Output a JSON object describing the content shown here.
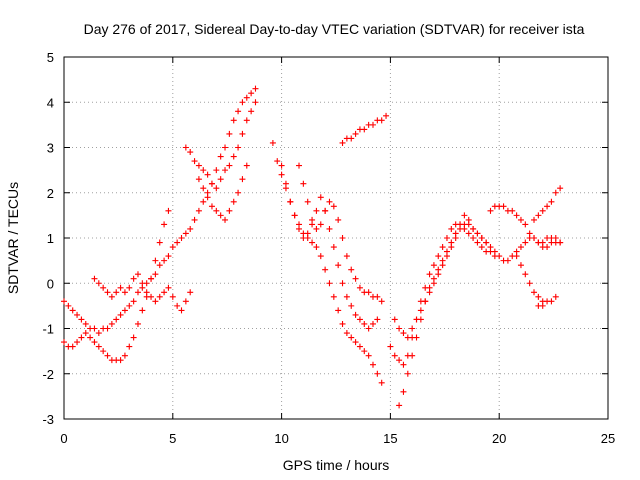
{
  "chart_data": {
    "type": "scatter",
    "title": "Day 276 of 2017, Sidereal Day-to-day VTEC variation (SDTVAR) for receiver ista",
    "xlabel": "GPS time / hours",
    "ylabel": "SDTVAR / TECUs",
    "xlim": [
      0,
      25
    ],
    "ylim": [
      -3,
      5
    ],
    "xticks": [
      "0",
      "5",
      "10",
      "15",
      "20",
      "25"
    ],
    "yticks": [
      "-3",
      "-2",
      "-1",
      "0",
      "1",
      "2",
      "3",
      "4",
      "5"
    ],
    "grid": true,
    "marker": "plus",
    "color": "#ff0000",
    "series": [
      {
        "x": [
          0.0,
          0.2,
          0.4,
          0.6,
          0.8,
          1.0,
          1.2,
          1.4,
          1.6,
          1.8,
          2.0,
          2.2,
          2.4,
          2.6,
          2.8,
          3.0,
          3.2,
          3.4,
          3.6,
          3.8,
          4.0,
          4.2,
          4.4,
          4.6,
          4.8,
          5.0,
          5.2,
          5.4,
          5.6,
          5.8,
          6.0,
          6.2,
          6.4,
          6.6,
          6.8,
          7.0,
          7.2,
          7.4,
          7.6,
          7.8,
          8.0,
          8.2,
          8.4,
          8.6,
          8.8
        ],
        "y": [
          -0.4,
          -0.5,
          -0.6,
          -0.7,
          -0.8,
          -0.9,
          -1.0,
          -1.0,
          -1.1,
          -1.0,
          -1.0,
          -0.9,
          -0.8,
          -0.7,
          -0.6,
          -0.5,
          -0.4,
          -0.2,
          -0.1,
          0.0,
          0.1,
          0.2,
          0.4,
          0.5,
          0.6,
          0.8,
          0.9,
          1.0,
          1.1,
          1.2,
          1.4,
          1.6,
          1.8,
          2.0,
          2.2,
          2.5,
          2.8,
          3.0,
          3.3,
          3.6,
          3.8,
          4.0,
          4.1,
          4.2,
          4.3
        ]
      },
      {
        "x": [
          0.0,
          0.2,
          0.4,
          0.6,
          0.8,
          1.0,
          1.2,
          1.4,
          1.6,
          1.8,
          2.0,
          2.2,
          2.4,
          2.6,
          2.8,
          3.0,
          3.2,
          3.4,
          3.6,
          3.8,
          4.0,
          4.2,
          4.4,
          4.6,
          4.8
        ],
        "y": [
          -1.3,
          -1.4,
          -1.4,
          -1.3,
          -1.2,
          -1.1,
          -1.2,
          -1.3,
          -1.4,
          -1.5,
          -1.6,
          -1.7,
          -1.7,
          -1.7,
          -1.6,
          -1.4,
          -1.2,
          -0.9,
          -0.6,
          -0.3,
          0.1,
          0.5,
          0.9,
          1.3,
          1.6
        ]
      },
      {
        "x": [
          1.4,
          1.6,
          1.8,
          2.0,
          2.2,
          2.4,
          2.6,
          2.8,
          3.0,
          3.2,
          3.4,
          3.6,
          3.8,
          4.0,
          4.2,
          4.4,
          4.6,
          4.8,
          5.0,
          5.2,
          5.4,
          5.6,
          5.8
        ],
        "y": [
          0.1,
          0.0,
          -0.1,
          -0.2,
          -0.3,
          -0.2,
          -0.1,
          -0.2,
          -0.1,
          0.1,
          0.2,
          0.0,
          -0.2,
          -0.3,
          -0.4,
          -0.3,
          -0.2,
          -0.1,
          -0.3,
          -0.5,
          -0.6,
          -0.4,
          -0.2
        ]
      },
      {
        "x": [
          5.6,
          5.8,
          6.0,
          6.2,
          6.4,
          6.6,
          6.8,
          7.0,
          7.2,
          7.4,
          7.6,
          7.8,
          8.0,
          8.2,
          8.4,
          8.6,
          8.8
        ],
        "y": [
          3.0,
          2.9,
          2.7,
          2.6,
          2.5,
          2.4,
          2.2,
          2.1,
          2.3,
          2.5,
          2.6,
          2.8,
          3.0,
          3.3,
          3.6,
          3.8,
          4.0
        ]
      },
      {
        "x": [
          6.2,
          6.4,
          6.6,
          6.8,
          7.0,
          7.2,
          7.4,
          7.6,
          7.8,
          8.0,
          8.2,
          8.4
        ],
        "y": [
          2.3,
          2.1,
          1.9,
          1.7,
          1.6,
          1.5,
          1.4,
          1.6,
          1.8,
          2.0,
          2.3,
          2.6
        ]
      },
      {
        "x": [
          9.6,
          9.8,
          10.0,
          10.2,
          10.4,
          10.6,
          10.8,
          11.0,
          11.2,
          11.4,
          11.6,
          11.8,
          12.0,
          12.2,
          12.4,
          12.6,
          12.8,
          13.0,
          13.2,
          13.4,
          13.6,
          13.8,
          14.0,
          14.2,
          14.4,
          14.6
        ],
        "y": [
          3.1,
          2.7,
          2.4,
          2.1,
          1.8,
          1.5,
          1.3,
          1.1,
          1.0,
          0.9,
          0.8,
          0.6,
          0.3,
          0.0,
          -0.3,
          -0.6,
          -0.9,
          -1.1,
          -1.2,
          -1.3,
          -1.4,
          -1.5,
          -1.6,
          -1.8,
          -2.0,
          -2.2
        ]
      },
      {
        "x": [
          10.0,
          10.2,
          10.4,
          10.6,
          10.8,
          11.0,
          11.2,
          11.4,
          11.6,
          11.8,
          12.0,
          12.2,
          12.4,
          12.6,
          12.8,
          13.0,
          13.2,
          13.4,
          13.6,
          13.8,
          14.0,
          14.2,
          14.4
        ],
        "y": [
          2.6,
          2.2,
          1.8,
          1.5,
          1.2,
          1.0,
          1.1,
          1.3,
          1.6,
          1.9,
          1.6,
          1.2,
          0.8,
          0.4,
          0.0,
          -0.3,
          -0.5,
          -0.7,
          -0.8,
          -0.9,
          -1.0,
          -0.9,
          -0.8
        ]
      },
      {
        "x": [
          10.8,
          11.0,
          11.2,
          11.4,
          11.6,
          11.8,
          12.0,
          12.2,
          12.4,
          12.6,
          12.8,
          13.0,
          13.2,
          13.4,
          13.6,
          13.8,
          14.0,
          14.2,
          14.4,
          14.6
        ],
        "y": [
          2.6,
          2.2,
          1.8,
          1.4,
          1.2,
          1.3,
          1.6,
          1.8,
          1.7,
          1.4,
          1.0,
          0.6,
          0.3,
          0.1,
          -0.1,
          -0.2,
          -0.2,
          -0.3,
          -0.3,
          -0.4
        ]
      },
      {
        "x": [
          12.8,
          13.0,
          13.2,
          13.4,
          13.6,
          13.8,
          14.0,
          14.2,
          14.4,
          14.6,
          14.8
        ],
        "y": [
          3.1,
          3.2,
          3.2,
          3.3,
          3.4,
          3.4,
          3.5,
          3.5,
          3.6,
          3.6,
          3.7
        ]
      },
      {
        "x": [
          15.0,
          15.2,
          15.4,
          15.6,
          15.8,
          16.0,
          16.2,
          16.4,
          16.6,
          16.8,
          17.0,
          17.2,
          17.4,
          17.6,
          17.8,
          18.0,
          18.2,
          18.4,
          18.6,
          18.8,
          19.0,
          19.2,
          19.4,
          19.6,
          19.8
        ],
        "y": [
          -1.4,
          -1.6,
          -1.7,
          -1.8,
          -1.6,
          -1.2,
          -0.8,
          -0.4,
          -0.1,
          0.2,
          0.4,
          0.6,
          0.8,
          1.0,
          1.2,
          1.3,
          1.3,
          1.2,
          1.1,
          1.0,
          0.9,
          0.8,
          0.7,
          0.7,
          0.6
        ]
      },
      {
        "x": [
          15.4,
          15.6,
          15.8,
          16.0,
          16.2,
          16.4,
          16.6,
          16.8,
          17.0,
          17.2,
          17.4,
          17.6,
          17.8,
          18.0,
          18.2,
          18.4,
          18.6,
          18.8
        ],
        "y": [
          -2.7,
          -2.4,
          -2.0,
          -1.6,
          -1.2,
          -0.8,
          -0.4,
          -0.1,
          0.1,
          0.3,
          0.5,
          0.7,
          0.9,
          1.1,
          1.3,
          1.5,
          1.4,
          1.2
        ]
      },
      {
        "x": [
          15.2,
          15.4,
          15.6,
          15.8,
          16.0,
          16.2,
          16.4,
          16.6,
          16.8,
          17.0,
          17.2,
          17.4,
          17.6,
          17.8,
          18.0,
          18.2,
          18.4,
          18.6,
          18.8,
          19.0,
          19.2,
          19.4
        ],
        "y": [
          -0.8,
          -1.0,
          -1.1,
          -1.2,
          -1.0,
          -0.8,
          -0.6,
          -0.4,
          -0.2,
          0.0,
          0.2,
          0.4,
          0.6,
          0.8,
          1.0,
          1.2,
          1.3,
          1.3,
          1.2,
          1.1,
          1.0,
          0.9
        ]
      },
      {
        "x": [
          19.6,
          19.8,
          20.0,
          20.2,
          20.4,
          20.6,
          20.8,
          21.0,
          21.2,
          21.4,
          21.6,
          21.8,
          22.0,
          22.2,
          22.4,
          22.6,
          22.8
        ],
        "y": [
          1.6,
          1.7,
          1.7,
          1.7,
          1.6,
          1.6,
          1.5,
          1.4,
          1.3,
          1.1,
          1.0,
          0.9,
          0.9,
          1.0,
          1.0,
          0.9,
          0.9
        ]
      },
      {
        "x": [
          19.0,
          19.2,
          19.4,
          19.6,
          19.8,
          20.0,
          20.2,
          20.4,
          20.6,
          20.8,
          21.0,
          21.2,
          21.4,
          21.6,
          21.8,
          22.0,
          22.2,
          22.4,
          22.6,
          22.8
        ],
        "y": [
          1.1,
          1.0,
          0.9,
          0.8,
          0.7,
          0.6,
          0.5,
          0.5,
          0.6,
          0.7,
          0.8,
          0.9,
          1.0,
          1.0,
          0.9,
          0.8,
          0.8,
          0.9,
          1.0,
          0.9
        ]
      },
      {
        "x": [
          20.8,
          21.0,
          21.2,
          21.4,
          21.6,
          21.8,
          22.0
        ],
        "y": [
          0.6,
          0.4,
          0.2,
          0.0,
          -0.2,
          -0.3,
          -0.4
        ]
      },
      {
        "x": [
          21.6,
          21.8,
          22.0,
          22.2,
          22.4,
          22.6,
          22.8
        ],
        "y": [
          1.4,
          1.5,
          1.6,
          1.7,
          1.8,
          2.0,
          2.1
        ]
      },
      {
        "x": [
          21.8,
          22.0,
          22.2,
          22.4,
          22.6
        ],
        "y": [
          -0.5,
          -0.5,
          -0.4,
          -0.4,
          -0.3
        ]
      }
    ]
  }
}
